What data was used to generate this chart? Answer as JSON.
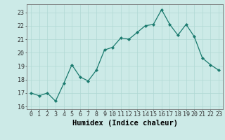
{
  "x": [
    0,
    1,
    2,
    3,
    4,
    5,
    6,
    7,
    8,
    9,
    10,
    11,
    12,
    13,
    14,
    15,
    16,
    17,
    18,
    19,
    20,
    21,
    22,
    23
  ],
  "y": [
    17.0,
    16.8,
    17.0,
    16.4,
    17.7,
    19.1,
    18.2,
    17.9,
    18.7,
    20.2,
    20.4,
    21.1,
    21.0,
    21.5,
    22.0,
    22.1,
    23.2,
    22.1,
    21.3,
    22.1,
    21.2,
    19.6,
    19.1,
    18.7
  ],
  "line_color": "#1a7a6e",
  "marker": "D",
  "marker_size": 2.2,
  "bg_color": "#cceae7",
  "grid_color": "#b0d8d4",
  "xlabel": "Humidex (Indice chaleur)",
  "xlim": [
    -0.5,
    23.5
  ],
  "ylim": [
    15.8,
    23.6
  ],
  "yticks": [
    16,
    17,
    18,
    19,
    20,
    21,
    22,
    23
  ],
  "xticks": [
    0,
    1,
    2,
    3,
    4,
    5,
    6,
    7,
    8,
    9,
    10,
    11,
    12,
    13,
    14,
    15,
    16,
    17,
    18,
    19,
    20,
    21,
    22,
    23
  ],
  "tick_fontsize": 6.0,
  "xlabel_fontsize": 7.5
}
